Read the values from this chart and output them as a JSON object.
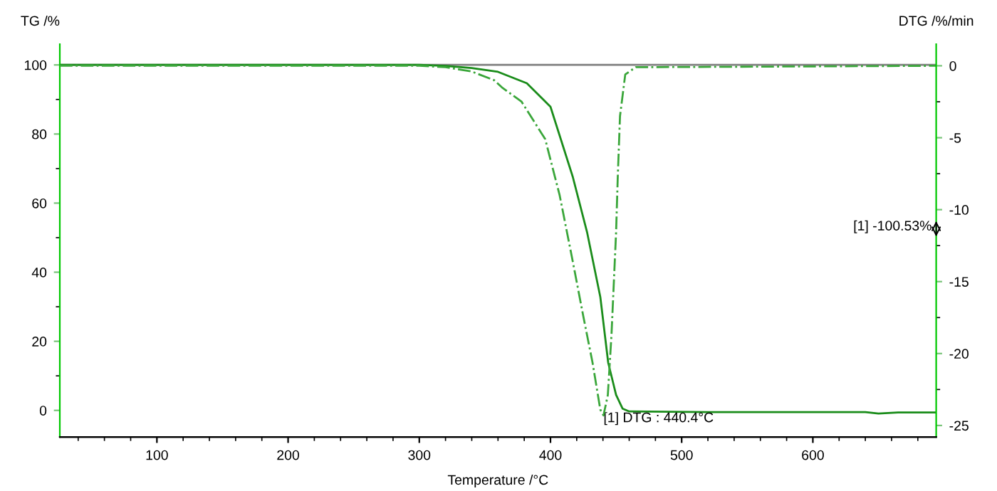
{
  "chart_data": {
    "type": "line",
    "xlabel": "Temperature /°C",
    "ylabel": "TG /%",
    "y2label": "DTG /%/min",
    "xlim": [
      26,
      694
    ],
    "xticks": [
      100,
      200,
      300,
      400,
      500,
      600
    ],
    "ylim": [
      -7.7,
      106
    ],
    "yticks": [
      0,
      20,
      40,
      60,
      80,
      100
    ],
    "y2lim": [
      -25.8,
      1.5
    ],
    "y2ticks": [
      0,
      -5,
      -10,
      -15,
      -20,
      -25
    ],
    "grid": false,
    "ref_lines": [
      {
        "axis": "y",
        "value": 100,
        "color": "#808080",
        "line_style": "solid"
      }
    ],
    "annotations": [
      {
        "text": "[1] DTG : 440.4°C",
        "x": 440.4,
        "y": -0.5
      },
      "[1] -100.53%"
    ],
    "series": [
      {
        "color": "#1a8c1a",
        "line_style": "solid",
        "x": [
          26,
          300,
          320,
          340,
          360,
          382,
          400,
          417,
          428,
          438,
          444,
          450,
          455,
          460,
          520,
          640,
          650,
          665,
          694
        ],
        "values": [
          100,
          100,
          99.7,
          99.1,
          98.0,
          94.7,
          87.9,
          67.6,
          51.4,
          32.8,
          13.8,
          4.5,
          0.5,
          -0.3,
          -0.5,
          -0.5,
          -0.9,
          -0.6,
          -0.6
        ]
      },
      {
        "color": "#3aa63a",
        "line_style": "dashdot",
        "axis": "y2",
        "x": [
          26,
          300,
          320,
          340,
          357,
          363,
          378,
          396,
          407,
          417,
          425,
          432,
          438,
          440.4,
          443.7,
          446.5,
          450,
          451.3,
          453,
          457,
          465,
          694
        ],
        "values": [
          0,
          0,
          -0.1,
          -0.4,
          -1.0,
          -1.5,
          -2.5,
          -5.1,
          -9.0,
          -13.6,
          -17.4,
          -20.6,
          -23.9,
          -24.3,
          -22.9,
          -18.7,
          -11.6,
          -7.7,
          -3.5,
          -0.6,
          -0.1,
          0
        ]
      }
    ]
  }
}
